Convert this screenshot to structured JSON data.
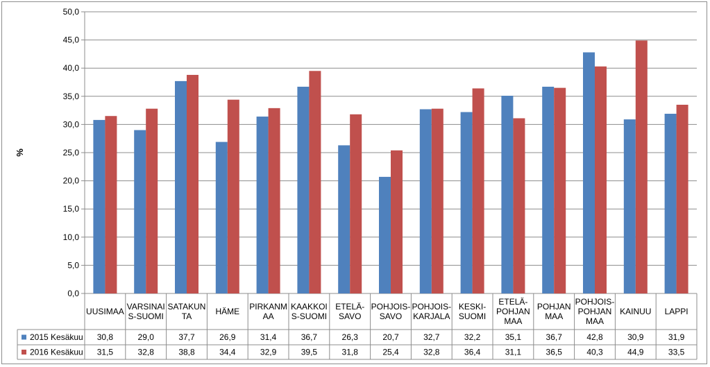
{
  "chart_data": {
    "type": "bar",
    "ylabel": "%",
    "ylim": [
      0,
      50
    ],
    "yticks": [
      "0,0",
      "5,0",
      "10,0",
      "15,0",
      "20,0",
      "25,0",
      "30,0",
      "35,0",
      "40,0",
      "45,0",
      "50,0"
    ],
    "grid": true,
    "categories": [
      [
        "UUSIMAA"
      ],
      [
        "VARSINAI",
        "S-SUOMI"
      ],
      [
        "SATAKUN",
        "TA"
      ],
      [
        "HÄME"
      ],
      [
        "PIRKANM",
        "AA"
      ],
      [
        "KAAKKOI",
        "S-SUOMI"
      ],
      [
        "ETELÄ-",
        "SAVO"
      ],
      [
        "POHJOIS-",
        "SAVO"
      ],
      [
        "POHJOIS-",
        "KARJALA"
      ],
      [
        "KESKI-",
        "SUOMI"
      ],
      [
        "ETELÄ-",
        "POHJAN",
        "MAA"
      ],
      [
        "POHJAN",
        "MAA"
      ],
      [
        "POHJOIS-",
        "POHJAN",
        "MAA"
      ],
      [
        "KAINUU"
      ],
      [
        "LAPPI"
      ]
    ],
    "series": [
      {
        "name": "2015 Kesäkuu",
        "color": "#4F81BD",
        "values": [
          30.8,
          29.0,
          37.7,
          26.9,
          31.4,
          36.7,
          26.3,
          20.7,
          32.7,
          32.2,
          35.1,
          36.7,
          42.8,
          30.9,
          31.9
        ],
        "labels": [
          "30,8",
          "29,0",
          "37,7",
          "26,9",
          "31,4",
          "36,7",
          "26,3",
          "20,7",
          "32,7",
          "32,2",
          "35,1",
          "36,7",
          "42,8",
          "30,9",
          "31,9"
        ]
      },
      {
        "name": "2016 Kesäkuu",
        "color": "#C0504D",
        "values": [
          31.5,
          32.8,
          38.8,
          34.4,
          32.9,
          39.5,
          31.8,
          25.4,
          32.8,
          36.4,
          31.1,
          36.5,
          40.3,
          44.9,
          33.5
        ],
        "labels": [
          "31,5",
          "32,8",
          "38,8",
          "34,4",
          "32,9",
          "39,5",
          "31,8",
          "25,4",
          "32,8",
          "36,4",
          "31,1",
          "36,5",
          "40,3",
          "44,9",
          "33,5"
        ]
      }
    ],
    "legend": "data-table"
  }
}
